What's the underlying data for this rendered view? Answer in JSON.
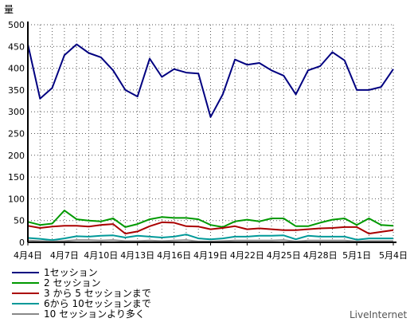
{
  "chart_data": {
    "type": "line",
    "ylabel": "量",
    "ylim": [
      0,
      500
    ],
    "yticks": [
      0,
      50,
      100,
      150,
      200,
      250,
      300,
      350,
      400,
      450,
      500
    ],
    "grid": true,
    "legend_position": "bottom-left",
    "x_ticks": [
      {
        "i": 0,
        "label": "4月4日"
      },
      {
        "i": 3,
        "label": "4月7日"
      },
      {
        "i": 6,
        "label": "4月10日"
      },
      {
        "i": 9,
        "label": "4月13日"
      },
      {
        "i": 12,
        "label": "4月16日"
      },
      {
        "i": 15,
        "label": "4月19日"
      },
      {
        "i": 18,
        "label": "4月22日"
      },
      {
        "i": 21,
        "label": "4月25日"
      },
      {
        "i": 24,
        "label": "4月28日"
      },
      {
        "i": 27,
        "label": "5月1日"
      },
      {
        "i": 30,
        "label": "5月4日"
      }
    ],
    "series": [
      {
        "name": "1セッション",
        "color": "#000080",
        "values": [
          455,
          330,
          355,
          430,
          455,
          435,
          425,
          395,
          350,
          335,
          422,
          380,
          398,
          390,
          388,
          288,
          340,
          420,
          408,
          412,
          395,
          383,
          340,
          395,
          405,
          437,
          418,
          350,
          350,
          357,
          398
        ]
      },
      {
        "name": "2 セッション",
        "color": "#009900",
        "values": [
          47,
          40,
          43,
          73,
          53,
          50,
          48,
          55,
          35,
          42,
          53,
          58,
          56,
          56,
          53,
          40,
          35,
          48,
          52,
          48,
          55,
          55,
          37,
          37,
          45,
          52,
          55,
          40,
          55,
          40,
          38
        ]
      },
      {
        "name": "3 から 5 セッションまで",
        "color": "#aa0000",
        "values": [
          38,
          33,
          36,
          38,
          38,
          36,
          40,
          42,
          20,
          25,
          37,
          46,
          45,
          37,
          36,
          30,
          33,
          37,
          30,
          32,
          30,
          28,
          28,
          30,
          32,
          33,
          35,
          35,
          20,
          24,
          28
        ]
      },
      {
        "name": "6から 10セッションまで",
        "color": "#009999",
        "values": [
          10,
          8,
          5,
          9,
          14,
          13,
          15,
          16,
          11,
          15,
          13,
          11,
          13,
          18,
          9,
          7,
          9,
          13,
          13,
          15,
          15,
          16,
          7,
          15,
          13,
          13,
          13,
          6,
          9,
          9,
          9
        ]
      },
      {
        "name": "10 セッションより多く",
        "color": "#888888",
        "values": [
          4,
          3,
          2,
          3,
          5,
          5,
          4,
          5,
          3,
          3,
          4,
          3,
          4,
          5,
          2,
          2,
          3,
          4,
          4,
          4,
          4,
          5,
          2,
          4,
          4,
          4,
          4,
          2,
          3,
          3,
          3
        ]
      }
    ]
  },
  "watermark": "LiveInternet"
}
